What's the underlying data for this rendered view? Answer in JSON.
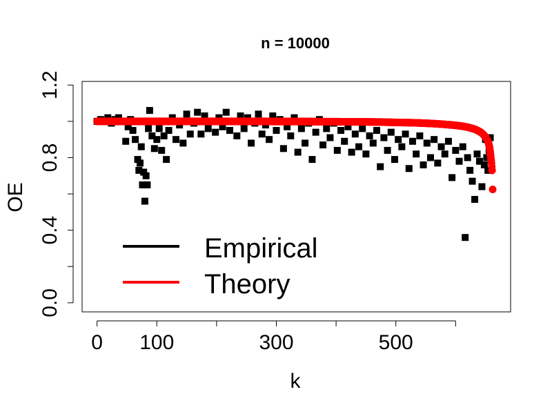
{
  "chart_data": {
    "type": "scatter",
    "title": "n =  10000",
    "xlabel": "k",
    "ylabel": "OE",
    "xlim": [
      -25,
      692
    ],
    "ylim": [
      -0.05,
      1.22
    ],
    "xticks": [
      0,
      100,
      200,
      300,
      400,
      500,
      600
    ],
    "xtick_labels": [
      "0",
      "100",
      "",
      "300",
      "",
      "500",
      ""
    ],
    "yticks": [
      0.0,
      0.2,
      0.4,
      0.6,
      0.8,
      1.0,
      1.2
    ],
    "ytick_labels": [
      "0.0",
      "",
      "0.4",
      "",
      "0.8",
      "",
      "1.2"
    ],
    "legend": {
      "placement": "bottom-left",
      "entries": [
        {
          "label": "Empirical",
          "color": "#000000"
        },
        {
          "label": "Theory",
          "color": "#ff0000"
        }
      ]
    },
    "series": [
      {
        "name": "Empirical",
        "color": "#000000",
        "marker": "square",
        "points": [
          [
            0,
            1.0
          ],
          [
            6,
            1.01
          ],
          [
            12,
            1.0
          ],
          [
            18,
            1.02
          ],
          [
            24,
            0.99
          ],
          [
            30,
            1.01
          ],
          [
            36,
            1.02
          ],
          [
            42,
            1.0
          ],
          [
            48,
            0.89
          ],
          [
            52,
            0.97
          ],
          [
            56,
            1.01
          ],
          [
            60,
            0.95
          ],
          [
            64,
            0.9
          ],
          [
            68,
            0.79
          ],
          [
            70,
            0.73
          ],
          [
            72,
            0.77
          ],
          [
            74,
            0.86
          ],
          [
            76,
            0.65
          ],
          [
            78,
            0.72
          ],
          [
            80,
            0.56
          ],
          [
            82,
            0.7
          ],
          [
            84,
            0.65
          ],
          [
            86,
            0.96
          ],
          [
            88,
            1.06
          ],
          [
            92,
            0.92
          ],
          [
            96,
            0.85
          ],
          [
            100,
            0.9
          ],
          [
            104,
            0.96
          ],
          [
            108,
            0.84
          ],
          [
            112,
            0.92
          ],
          [
            116,
            0.79
          ],
          [
            120,
            0.95
          ],
          [
            126,
            1.02
          ],
          [
            132,
            0.9
          ],
          [
            138,
            0.98
          ],
          [
            144,
            0.88
          ],
          [
            150,
            1.04
          ],
          [
            156,
            0.93
          ],
          [
            162,
            0.99
          ],
          [
            168,
            1.05
          ],
          [
            174,
            0.93
          ],
          [
            180,
            1.03
          ],
          [
            186,
            0.96
          ],
          [
            192,
            1.0
          ],
          [
            198,
            0.94
          ],
          [
            204,
            1.02
          ],
          [
            210,
            0.97
          ],
          [
            216,
            1.05
          ],
          [
            222,
            0.95
          ],
          [
            228,
            1.0
          ],
          [
            234,
            0.92
          ],
          [
            240,
            1.03
          ],
          [
            246,
            0.96
          ],
          [
            252,
            1.02
          ],
          [
            258,
            0.88
          ],
          [
            264,
            0.99
          ],
          [
            270,
            1.04
          ],
          [
            276,
            0.93
          ],
          [
            282,
            0.98
          ],
          [
            288,
            0.9
          ],
          [
            294,
            1.03
          ],
          [
            300,
            0.95
          ],
          [
            306,
            1.01
          ],
          [
            312,
            0.85
          ],
          [
            318,
            0.97
          ],
          [
            324,
            0.92
          ],
          [
            330,
            1.02
          ],
          [
            336,
            0.83
          ],
          [
            342,
            0.96
          ],
          [
            348,
            0.88
          ],
          [
            354,
            0.99
          ],
          [
            360,
            0.79
          ],
          [
            366,
            0.94
          ],
          [
            372,
            1.01
          ],
          [
            378,
            0.87
          ],
          [
            384,
            0.96
          ],
          [
            390,
            0.91
          ],
          [
            396,
            0.99
          ],
          [
            402,
            0.84
          ],
          [
            408,
            0.95
          ],
          [
            414,
            0.89
          ],
          [
            420,
            0.97
          ],
          [
            426,
            0.83
          ],
          [
            432,
            0.93
          ],
          [
            438,
            0.86
          ],
          [
            444,
            0.96
          ],
          [
            450,
            0.82
          ],
          [
            456,
            0.92
          ],
          [
            462,
            0.88
          ],
          [
            468,
            0.95
          ],
          [
            474,
            0.75
          ],
          [
            480,
            0.91
          ],
          [
            486,
            0.84
          ],
          [
            492,
            0.94
          ],
          [
            498,
            0.79
          ],
          [
            504,
            0.9
          ],
          [
            510,
            0.86
          ],
          [
            516,
            0.93
          ],
          [
            522,
            0.74
          ],
          [
            528,
            0.89
          ],
          [
            534,
            0.82
          ],
          [
            540,
            0.92
          ],
          [
            546,
            0.76
          ],
          [
            552,
            0.88
          ],
          [
            558,
            0.8
          ],
          [
            564,
            0.9
          ],
          [
            570,
            0.77
          ],
          [
            576,
            0.86
          ],
          [
            582,
            0.82
          ],
          [
            588,
            0.89
          ],
          [
            594,
            0.69
          ],
          [
            600,
            0.84
          ],
          [
            606,
            0.78
          ],
          [
            612,
            0.86
          ],
          [
            616,
            0.36
          ],
          [
            620,
            0.8
          ],
          [
            624,
            0.73
          ],
          [
            628,
            0.67
          ],
          [
            632,
            0.57
          ],
          [
            636,
            0.82
          ],
          [
            640,
            0.78
          ],
          [
            644,
            0.64
          ],
          [
            648,
            0.76
          ],
          [
            650,
            0.9
          ],
          [
            652,
            0.8
          ],
          [
            654,
            0.73
          ],
          [
            656,
            0.84
          ],
          [
            658,
            0.91
          ]
        ]
      },
      {
        "name": "Theory",
        "color": "#ff0000",
        "marker": "circle",
        "points": [
          [
            0,
            1.0
          ],
          [
            25,
            1.0
          ],
          [
            50,
            1.0
          ],
          [
            75,
            1.0
          ],
          [
            100,
            1.0
          ],
          [
            125,
            1.0
          ],
          [
            150,
            1.0
          ],
          [
            175,
            1.0
          ],
          [
            200,
            1.0
          ],
          [
            225,
            1.0
          ],
          [
            250,
            1.0
          ],
          [
            275,
            1.0
          ],
          [
            300,
            0.999
          ],
          [
            325,
            0.999
          ],
          [
            350,
            0.999
          ],
          [
            375,
            0.998
          ],
          [
            400,
            0.998
          ],
          [
            425,
            0.997
          ],
          [
            450,
            0.997
          ],
          [
            475,
            0.996
          ],
          [
            500,
            0.994
          ],
          [
            520,
            0.993
          ],
          [
            540,
            0.991
          ],
          [
            560,
            0.988
          ],
          [
            575,
            0.985
          ],
          [
            590,
            0.981
          ],
          [
            600,
            0.978
          ],
          [
            610,
            0.974
          ],
          [
            620,
            0.968
          ],
          [
            628,
            0.961
          ],
          [
            634,
            0.954
          ],
          [
            640,
            0.944
          ],
          [
            644,
            0.935
          ],
          [
            648,
            0.922
          ],
          [
            651,
            0.909
          ],
          [
            653,
            0.897
          ],
          [
            655,
            0.88
          ],
          [
            656,
            0.868
          ],
          [
            657,
            0.852
          ],
          [
            658,
            0.83
          ],
          [
            659,
            0.8
          ],
          [
            660,
            0.77
          ],
          [
            661,
            0.73
          ],
          [
            662,
            0.625
          ]
        ]
      }
    ]
  }
}
